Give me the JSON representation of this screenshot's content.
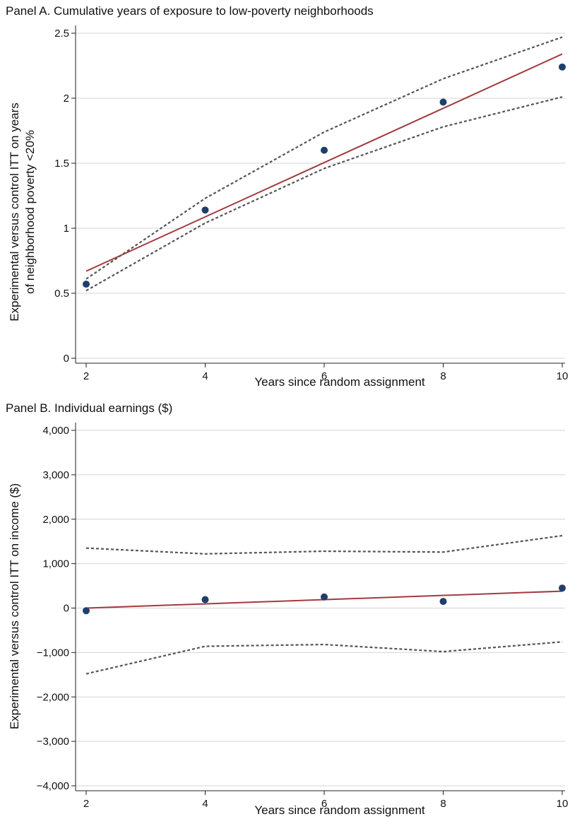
{
  "chart_data": [
    {
      "type": "scatter",
      "title": "Panel A. Cumulative years of exposure to low-poverty neighborhoods",
      "xlabel": "Years since random assignment",
      "ylabel_line1": "Experimental versus control ITT on years",
      "ylabel_line2": "of neighborhood poverty <20%",
      "xlim": [
        2,
        10
      ],
      "ylim": [
        0,
        2.5
      ],
      "xticks": [
        2,
        4,
        6,
        8,
        10
      ],
      "xtick_labels": [
        "2",
        "4",
        "6",
        "8",
        "10"
      ],
      "yticks": [
        0,
        0.5,
        1,
        1.5,
        2,
        2.5
      ],
      "ytick_labels": [
        "0",
        "0.5",
        "1",
        "1.5",
        "2",
        "2.5"
      ],
      "grid": true,
      "colors": {
        "points": "#1f3f6b",
        "fit": "#a33a3f",
        "ci": "#555555"
      },
      "points": {
        "x": [
          2,
          4,
          6,
          8,
          10
        ],
        "y": [
          0.57,
          1.14,
          1.6,
          1.97,
          2.24
        ]
      },
      "fit": {
        "x": [
          2,
          10
        ],
        "y": [
          0.67,
          2.34
        ]
      },
      "ci_upper": {
        "x": [
          2,
          4,
          6,
          8,
          10
        ],
        "y": [
          0.61,
          1.23,
          1.74,
          2.15,
          2.47
        ]
      },
      "ci_lower": {
        "x": [
          2,
          4,
          6,
          8,
          10
        ],
        "y": [
          0.52,
          1.04,
          1.46,
          1.78,
          2.01
        ]
      }
    },
    {
      "type": "scatter",
      "title": "Panel B. Individual earnings ($)",
      "xlabel": "Years since random assignment",
      "ylabel_line1": "Experimental versus control ITT on income ($)",
      "ylabel_line2": "",
      "xlim": [
        2,
        10
      ],
      "ylim": [
        -4000,
        4000
      ],
      "xticks": [
        2,
        4,
        6,
        8,
        10
      ],
      "xtick_labels": [
        "2",
        "4",
        "6",
        "8",
        "10"
      ],
      "yticks": [
        -4000,
        -3000,
        -2000,
        -1000,
        0,
        1000,
        2000,
        3000,
        4000
      ],
      "ytick_labels": [
        "−4,000",
        "−3,000",
        "−2,000",
        "−1,000",
        "0",
        "1,000",
        "2,000",
        "3,000",
        "4,000"
      ],
      "grid": true,
      "colors": {
        "points": "#1f3f6b",
        "fit": "#a33a3f",
        "ci": "#555555"
      },
      "points": {
        "x": [
          2,
          4,
          6,
          8,
          10
        ],
        "y": [
          -60,
          190,
          250,
          150,
          450
        ]
      },
      "fit": {
        "x": [
          2,
          10
        ],
        "y": [
          0,
          380
        ]
      },
      "ci_upper": {
        "x": [
          2,
          4,
          6,
          8,
          10
        ],
        "y": [
          1350,
          1220,
          1280,
          1260,
          1630
        ]
      },
      "ci_lower": {
        "x": [
          2,
          4,
          6,
          8,
          10
        ],
        "y": [
          -1480,
          -860,
          -820,
          -980,
          -760
        ]
      }
    }
  ]
}
